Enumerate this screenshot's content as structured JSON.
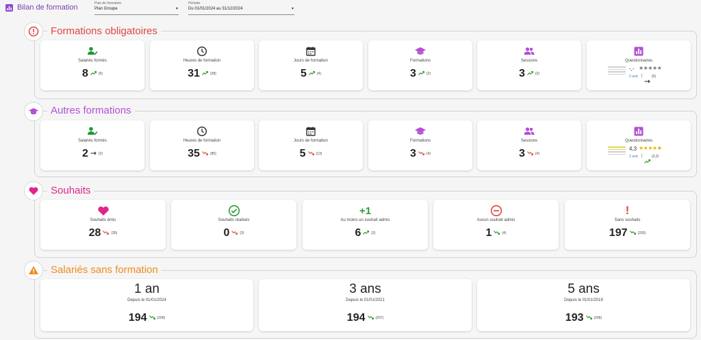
{
  "header": {
    "title": "Bilan de formation",
    "plan": {
      "label": "Plan de formation",
      "value": "Plan Groupe"
    },
    "period": {
      "label": "Période",
      "value": "Du 01/01/2024 au 31/12/2024"
    }
  },
  "colors": {
    "red": "#e0453e",
    "purple": "#b44fd6",
    "pink": "#e0268a",
    "orange": "#f08c1a",
    "green": "#2e9a35",
    "tealgreen": "#1f9a3a"
  },
  "sections": {
    "obligatoires": {
      "title": "Formations obligatoires",
      "icon": "alert-circle-icon",
      "cards": [
        {
          "label": "Salariés formés",
          "icon": "person-check-icon",
          "value": "8",
          "trend": "up",
          "prev": "(0)"
        },
        {
          "label": "Heures de formation",
          "icon": "clock-icon",
          "value": "31",
          "trend": "up",
          "prev": "(28)"
        },
        {
          "label": "Jours de formation",
          "icon": "calendar-icon",
          "value": "5",
          "trend": "up",
          "prev": "(4)"
        },
        {
          "label": "Formations",
          "icon": "graduation-cap-icon",
          "value": "3",
          "trend": "up",
          "prev": "(2)"
        },
        {
          "label": "Sessions",
          "icon": "group-icon",
          "value": "3",
          "trend": "up",
          "prev": "(2)"
        }
      ],
      "questionnaire": {
        "label": "Questionnaires",
        "icon": "bar-chart-icon",
        "score": "-,-",
        "stars": "★★★★★",
        "avis": "0 avis",
        "trend": "flat",
        "prev": "(0)"
      }
    },
    "autres": {
      "title": "Autres formations",
      "icon": "graduation-cap-icon",
      "cards": [
        {
          "label": "Salariés formés",
          "icon": "person-check-icon",
          "value": "2",
          "trend": "flat",
          "prev": "(2)"
        },
        {
          "label": "Heures de formation",
          "icon": "clock-icon",
          "value": "35",
          "trend": "down",
          "prev": "(85)"
        },
        {
          "label": "Jours de formation",
          "icon": "calendar-icon",
          "value": "5",
          "trend": "down",
          "prev": "(13)"
        },
        {
          "label": "Formations",
          "icon": "graduation-cap-icon",
          "value": "3",
          "trend": "down",
          "prev": "(4)"
        },
        {
          "label": "Sessions",
          "icon": "group-icon",
          "value": "3",
          "trend": "down",
          "prev": "(4)"
        }
      ],
      "questionnaire": {
        "label": "Questionnaires",
        "icon": "bar-chart-icon",
        "score": "4,3",
        "stars": "★★★★★",
        "avis": "2 avis",
        "trend": "up",
        "prev": "(3,2)"
      }
    },
    "souhaits": {
      "title": "Souhaits",
      "icon": "heart-icon",
      "cards": [
        {
          "label": "Souhaits émis",
          "icon": "heart-icon",
          "value": "28",
          "trend": "down",
          "prev": "(35)"
        },
        {
          "label": "Souhaits réalisés",
          "icon": "check-circle-icon",
          "value": "0",
          "trend": "down",
          "prev": "(3)"
        },
        {
          "label": "Au moins un souhait admis",
          "icon": "plus-one-icon",
          "icon_text": "+1",
          "value": "6",
          "trend": "up",
          "prev": "(2)"
        },
        {
          "label": "Aucun souhait admis",
          "icon": "minus-circle-icon",
          "value": "1",
          "trend": "down",
          "prev": "(4)"
        },
        {
          "label": "Sans souhaits",
          "icon": "exclamation-icon",
          "icon_text": "!",
          "value": "197",
          "trend": "down",
          "prev": "(203)"
        }
      ]
    },
    "sans": {
      "title": "Salariés sans formation",
      "icon": "warning-icon",
      "cards": [
        {
          "period": "1 an",
          "since": "Depuis le 01/01/2024",
          "value": "194",
          "trend": "down",
          "prev": "(209)"
        },
        {
          "period": "3 ans",
          "since": "Depuis le 01/01/2021",
          "value": "194",
          "trend": "down",
          "prev": "(207)"
        },
        {
          "period": "5 ans",
          "since": "Depuis le 01/01/2019",
          "value": "193",
          "trend": "down",
          "prev": "(206)"
        }
      ]
    }
  }
}
